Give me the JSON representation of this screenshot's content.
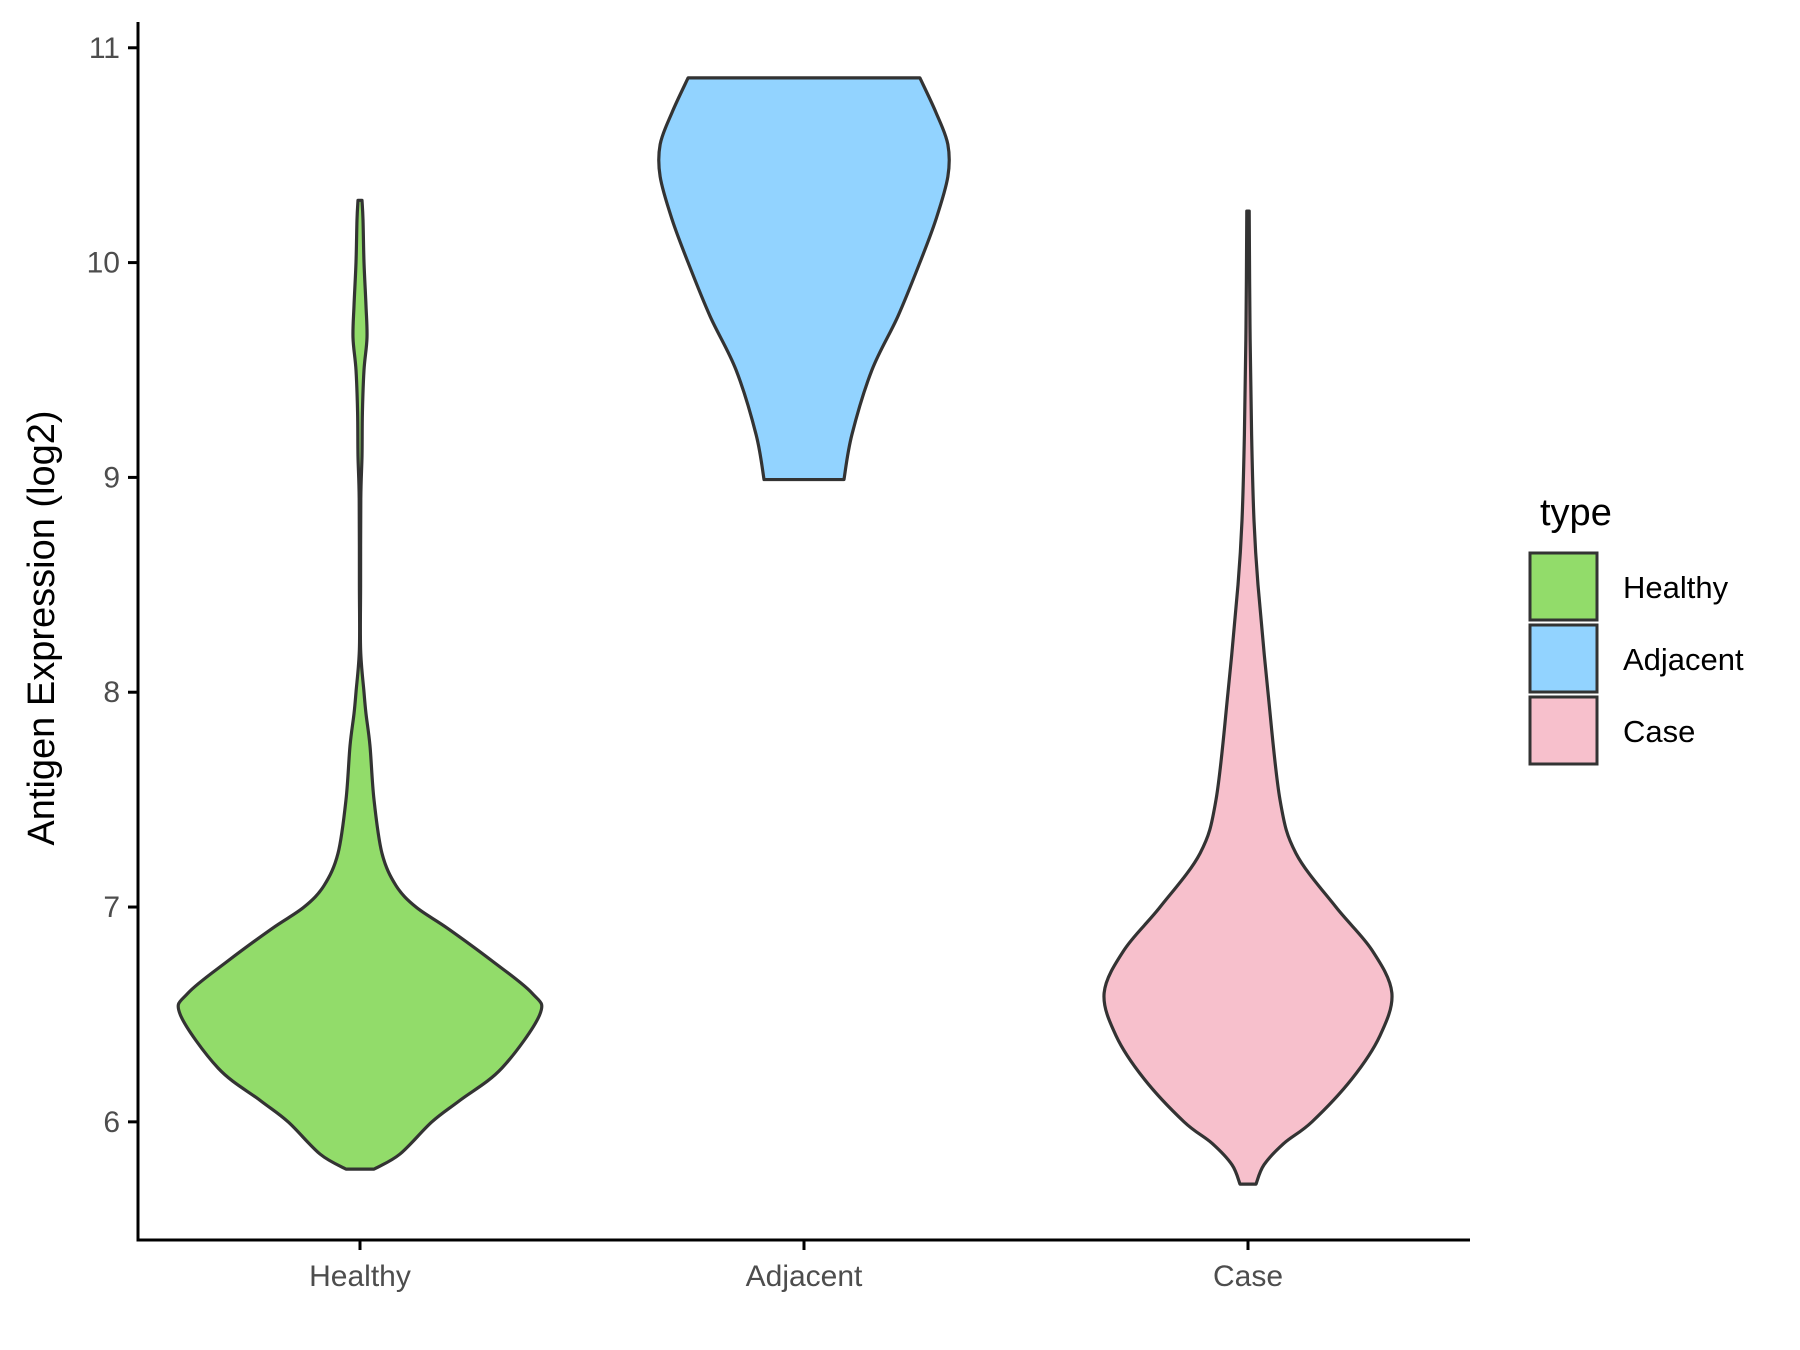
{
  "chart_data": {
    "type": "violin",
    "title": "",
    "xlabel": "",
    "ylabel": "Antigen Expression (log2)",
    "ylim": [
      5.45,
      11.12
    ],
    "yticks": [
      6,
      7,
      8,
      9,
      10,
      11
    ],
    "categories": [
      "Healthy",
      "Adjacent",
      "Case"
    ],
    "grid": false,
    "legend": {
      "title": "type",
      "placement": "right"
    },
    "series": [
      {
        "name": "Healthy",
        "color": "#92DC6A",
        "min": 5.78,
        "max": 10.29,
        "density_profile": [
          [
            5.78,
            0.07
          ],
          [
            5.85,
            0.2
          ],
          [
            6.0,
            0.36
          ],
          [
            6.1,
            0.5
          ],
          [
            6.25,
            0.71
          ],
          [
            6.5,
            0.9
          ],
          [
            6.6,
            0.86
          ],
          [
            6.75,
            0.66
          ],
          [
            6.9,
            0.44
          ],
          [
            7.0,
            0.28
          ],
          [
            7.1,
            0.18
          ],
          [
            7.25,
            0.11
          ],
          [
            7.5,
            0.07
          ],
          [
            7.75,
            0.05
          ],
          [
            7.9,
            0.03
          ],
          [
            8.0,
            0.02
          ],
          [
            8.2,
            0.003
          ],
          [
            8.5,
            0.003
          ],
          [
            8.9,
            0.004
          ],
          [
            9.1,
            0.01
          ],
          [
            9.3,
            0.012
          ],
          [
            9.5,
            0.02
          ],
          [
            9.65,
            0.035
          ],
          [
            9.8,
            0.03
          ],
          [
            10.0,
            0.02
          ],
          [
            10.2,
            0.015
          ],
          [
            10.29,
            0.01
          ]
        ]
      },
      {
        "name": "Adjacent",
        "color": "#92D3FF",
        "min": 8.99,
        "max": 10.86,
        "density_profile": [
          [
            8.99,
            0.2
          ],
          [
            9.2,
            0.24
          ],
          [
            9.5,
            0.34
          ],
          [
            9.75,
            0.47
          ],
          [
            10.0,
            0.58
          ],
          [
            10.2,
            0.66
          ],
          [
            10.4,
            0.72
          ],
          [
            10.55,
            0.72
          ],
          [
            10.7,
            0.66
          ],
          [
            10.86,
            0.58
          ]
        ]
      },
      {
        "name": "Case",
        "color": "#F7C0CC",
        "min": 5.71,
        "max": 10.24,
        "density_profile": [
          [
            5.71,
            0.04
          ],
          [
            5.8,
            0.08
          ],
          [
            5.9,
            0.18
          ],
          [
            6.0,
            0.32
          ],
          [
            6.2,
            0.52
          ],
          [
            6.4,
            0.66
          ],
          [
            6.6,
            0.72
          ],
          [
            6.8,
            0.62
          ],
          [
            7.0,
            0.44
          ],
          [
            7.25,
            0.24
          ],
          [
            7.5,
            0.16
          ],
          [
            8.0,
            0.1
          ],
          [
            8.5,
            0.05
          ],
          [
            8.8,
            0.03
          ],
          [
            9.2,
            0.018
          ],
          [
            9.7,
            0.01
          ],
          [
            10.24,
            0.006
          ]
        ]
      }
    ]
  }
}
